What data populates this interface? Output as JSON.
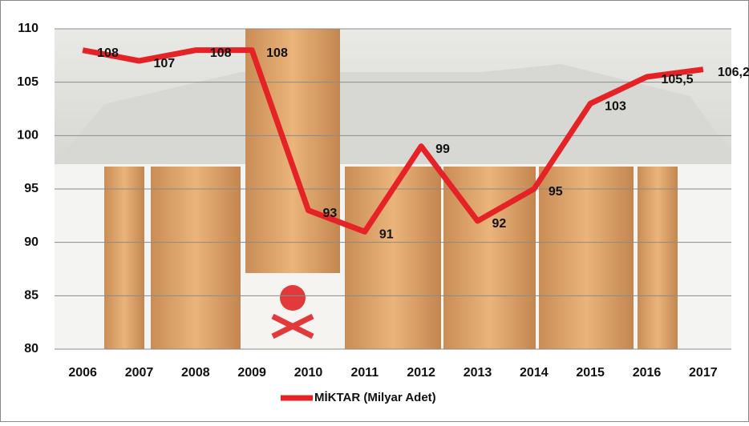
{
  "chart_data": {
    "type": "line",
    "categories": [
      "2006",
      "2007",
      "2008",
      "2009",
      "2010",
      "2011",
      "2012",
      "2013",
      "2014",
      "2015",
      "2016",
      "2017"
    ],
    "series": [
      {
        "name": "MİKTAR (Milyar Adet)",
        "color": "#e52226",
        "values": [
          108,
          107,
          108,
          108,
          93,
          91,
          99,
          92,
          95,
          103,
          105.5,
          106.2
        ],
        "value_labels": [
          "108",
          "107",
          "108",
          "108",
          "93",
          "91",
          "99",
          "92",
          "95",
          "103",
          "105,5",
          "106,2"
        ]
      }
    ],
    "ylim": [
      80,
      110
    ],
    "yticks": [
      80,
      85,
      90,
      95,
      100,
      105,
      110
    ],
    "grid": true,
    "legend": "bottom"
  }
}
